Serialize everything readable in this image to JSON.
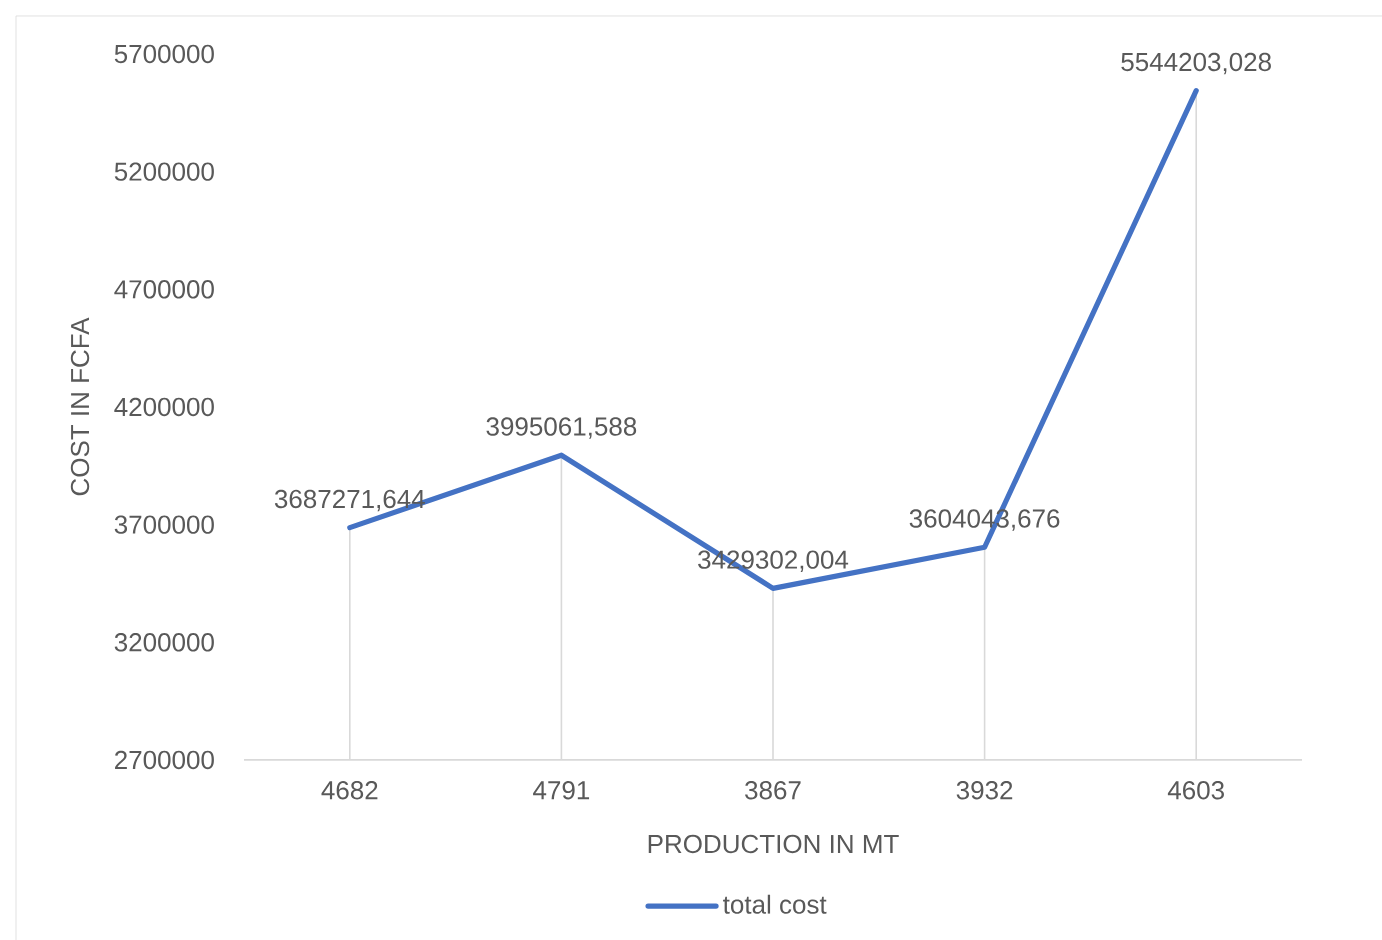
{
  "chart_data": {
    "type": "line",
    "xlabel": "PRODUCTION IN MT",
    "ylabel": "COST IN FCFA",
    "categories": [
      "4682",
      "4791",
      "3867",
      "3932",
      "4603"
    ],
    "series": [
      {
        "name": "total cost",
        "color": "#4472c4",
        "values": [
          3687271.644,
          3995061.588,
          3429302.004,
          3604043.676,
          5544203.028
        ],
        "value_labels": [
          "3687271,644",
          "3995061,588",
          "3429302,004",
          "3604043,676",
          "5544203,028"
        ]
      }
    ],
    "ylim": [
      2700000,
      5700000
    ],
    "yticks": [
      2700000,
      3200000,
      3700000,
      4200000,
      4700000,
      5200000,
      5700000
    ],
    "legend": "bottom",
    "grid": "x"
  }
}
